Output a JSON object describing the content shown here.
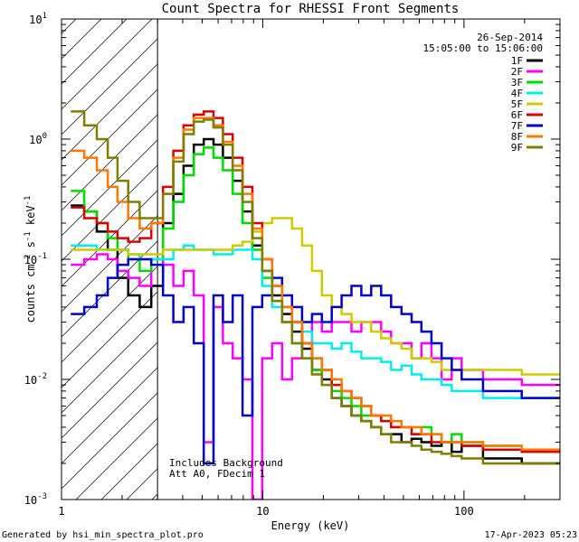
{
  "chart_data": {
    "type": "line",
    "title": "Count Spectra for RHESSI Front Segments",
    "xlabel": "Energy (keV)",
    "ylabel": "counts cm^-2 s^-1 keV^-1",
    "x_scale": "log",
    "y_scale": "log",
    "xlim": [
      1,
      300
    ],
    "ylim": [
      0.001,
      10
    ],
    "x_ticks": [
      {
        "value": 1,
        "label": "1"
      },
      {
        "value": 10,
        "label": "10"
      },
      {
        "value": 100,
        "label": "100"
      }
    ],
    "y_ticks": [
      {
        "value": 0.001,
        "mant": "10",
        "exp": "-3"
      },
      {
        "value": 0.01,
        "mant": "10",
        "exp": "-2"
      },
      {
        "value": 0.1,
        "mant": "10",
        "exp": "-1"
      },
      {
        "value": 1,
        "mant": "10",
        "exp": "0"
      },
      {
        "value": 10,
        "mant": "10",
        "exp": "1"
      }
    ],
    "legend_header": [
      "26-Sep-2014",
      "15:05:00 to 15:06:00"
    ],
    "hatched_region_kev": [
      1,
      3
    ],
    "annotations": [
      "Includes Background",
      "Att A0, FDecim 1"
    ],
    "series": [
      {
        "name": "1F",
        "color": "#000000",
        "values": [
          0.28,
          0.25,
          0.17,
          0.12,
          0.07,
          0.05,
          0.04,
          0.06,
          0.2,
          0.35,
          0.6,
          0.9,
          1.0,
          0.9,
          0.7,
          0.45,
          0.25,
          0.13,
          0.08,
          0.05,
          0.035,
          0.025,
          0.018,
          0.012,
          0.01,
          0.007,
          0.006,
          0.005,
          0.0045,
          0.004,
          0.0035,
          0.0035,
          0.003,
          0.0032,
          0.003,
          0.0028,
          0.003,
          0.0025,
          0.0028,
          0.0022,
          0.002
        ]
      },
      {
        "name": "2F",
        "color": "#ff00ff",
        "values": [
          0.09,
          0.1,
          0.11,
          0.1,
          0.08,
          0.07,
          0.06,
          0.1,
          0.09,
          0.06,
          0.08,
          0.05,
          0.003,
          0.04,
          0.02,
          0.015,
          0.01,
          0.001,
          0.015,
          0.02,
          0.01,
          0.015,
          0.02,
          0.03,
          0.025,
          0.03,
          0.03,
          0.025,
          0.03,
          0.03,
          0.025,
          0.02,
          0.02,
          0.015,
          0.02,
          0.015,
          0.01,
          0.015,
          0.012,
          0.01,
          0.009
        ]
      },
      {
        "name": "3F",
        "color": "#00dd00",
        "values": [
          0.37,
          0.25,
          0.2,
          0.15,
          0.12,
          0.1,
          0.08,
          0.1,
          0.18,
          0.3,
          0.5,
          0.75,
          0.85,
          0.7,
          0.55,
          0.35,
          0.2,
          0.12,
          0.07,
          0.045,
          0.03,
          0.02,
          0.015,
          0.012,
          0.009,
          0.008,
          0.007,
          0.006,
          0.005,
          0.005,
          0.0045,
          0.004,
          0.004,
          0.0035,
          0.004,
          0.0035,
          0.003,
          0.0035,
          0.003,
          0.0028,
          0.0025
        ]
      },
      {
        "name": "4F",
        "color": "#00eeee",
        "values": [
          0.13,
          0.13,
          0.12,
          0.12,
          0.12,
          0.11,
          0.1,
          0.1,
          0.1,
          0.12,
          0.13,
          0.12,
          0.12,
          0.11,
          0.11,
          0.12,
          0.12,
          0.1,
          0.06,
          0.04,
          0.03,
          0.03,
          0.025,
          0.02,
          0.02,
          0.018,
          0.02,
          0.017,
          0.015,
          0.015,
          0.014,
          0.012,
          0.013,
          0.011,
          0.01,
          0.01,
          0.009,
          0.008,
          0.008,
          0.007,
          0.007
        ]
      },
      {
        "name": "5F",
        "color": "#cccc00",
        "values": [
          0.12,
          0.12,
          0.12,
          0.12,
          0.12,
          0.11,
          0.11,
          0.11,
          0.12,
          0.12,
          0.12,
          0.12,
          0.12,
          0.12,
          0.12,
          0.13,
          0.14,
          0.17,
          0.2,
          0.22,
          0.22,
          0.18,
          0.13,
          0.08,
          0.05,
          0.04,
          0.035,
          0.03,
          0.03,
          0.025,
          0.022,
          0.02,
          0.018,
          0.015,
          0.015,
          0.014,
          0.012,
          0.012,
          0.012,
          0.012,
          0.011
        ]
      },
      {
        "name": "6F",
        "color": "#dd0000",
        "values": [
          0.27,
          0.22,
          0.2,
          0.17,
          0.15,
          0.14,
          0.15,
          0.2,
          0.4,
          0.8,
          1.3,
          1.6,
          1.7,
          1.5,
          1.1,
          0.7,
          0.4,
          0.2,
          0.1,
          0.06,
          0.04,
          0.03,
          0.02,
          0.015,
          0.012,
          0.009,
          0.008,
          0.007,
          0.006,
          0.005,
          0.0045,
          0.004,
          0.004,
          0.0035,
          0.0035,
          0.003,
          0.003,
          0.003,
          0.0028,
          0.0026,
          0.0025
        ]
      },
      {
        "name": "7F",
        "color": "#0000cc",
        "values": [
          0.035,
          0.04,
          0.05,
          0.07,
          0.09,
          0.1,
          0.1,
          0.09,
          0.05,
          0.03,
          0.04,
          0.02,
          0.002,
          0.05,
          0.03,
          0.05,
          0.005,
          0.04,
          0.05,
          0.07,
          0.05,
          0.04,
          0.03,
          0.035,
          0.03,
          0.04,
          0.05,
          0.06,
          0.05,
          0.06,
          0.05,
          0.04,
          0.035,
          0.03,
          0.025,
          0.02,
          0.015,
          0.012,
          0.01,
          0.008,
          0.007
        ]
      },
      {
        "name": "8F",
        "color": "#ff7700",
        "values": [
          0.8,
          0.7,
          0.55,
          0.4,
          0.3,
          0.22,
          0.18,
          0.2,
          0.35,
          0.7,
          1.2,
          1.5,
          1.5,
          1.3,
          0.95,
          0.6,
          0.35,
          0.18,
          0.1,
          0.06,
          0.04,
          0.03,
          0.02,
          0.015,
          0.012,
          0.01,
          0.008,
          0.007,
          0.006,
          0.005,
          0.005,
          0.0045,
          0.004,
          0.004,
          0.0035,
          0.0035,
          0.003,
          0.003,
          0.003,
          0.0028,
          0.0026
        ]
      },
      {
        "name": "9F",
        "color": "#7f7f00",
        "values": [
          1.7,
          1.3,
          1.0,
          0.7,
          0.45,
          0.3,
          0.22,
          0.22,
          0.35,
          0.65,
          1.1,
          1.4,
          1.45,
          1.25,
          0.9,
          0.55,
          0.3,
          0.15,
          0.08,
          0.045,
          0.03,
          0.02,
          0.015,
          0.011,
          0.009,
          0.007,
          0.006,
          0.005,
          0.0045,
          0.004,
          0.0035,
          0.003,
          0.003,
          0.0028,
          0.0026,
          0.0025,
          0.0024,
          0.0023,
          0.0022,
          0.002,
          0.002
        ]
      }
    ],
    "energy_bins_kev": [
      1.2,
      1.4,
      1.6,
      1.8,
      2.0,
      2.3,
      2.6,
      3.0,
      3.4,
      3.8,
      4.3,
      4.8,
      5.4,
      6.0,
      6.7,
      7.5,
      8.4,
      9.4,
      10.5,
      11.8,
      13.2,
      14.8,
      16.6,
      18.6,
      20.8,
      23.3,
      26.1,
      29.2,
      32.7,
      36.6,
      41,
      46,
      52,
      58,
      65,
      73,
      82,
      92,
      103,
      150,
      250
    ]
  },
  "footer": {
    "generated_by": "Generated by hsi_min_spectra_plot.pro",
    "timestamp": "17-Apr-2023 05:23"
  }
}
